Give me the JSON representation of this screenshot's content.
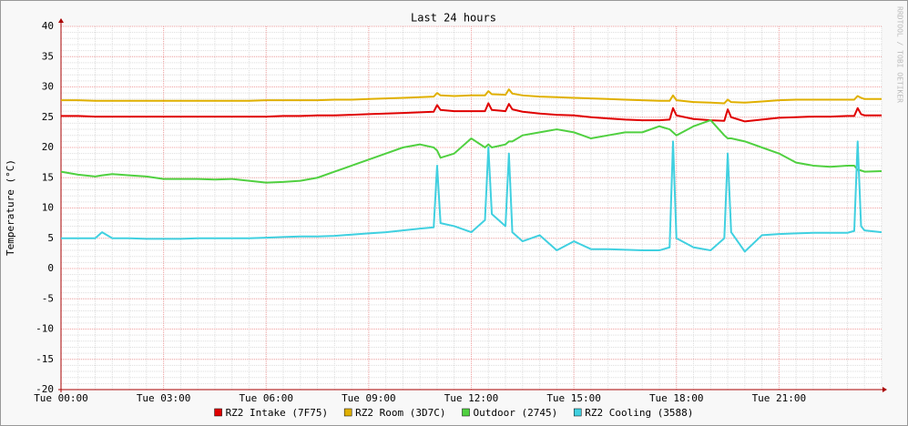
{
  "chart_data": {
    "type": "line",
    "title": "Last 24 hours",
    "y_label": "Temperature (°C)",
    "watermark": "RRDTOOL / TOBI OETIKER",
    "x": [
      0,
      0.5,
      1,
      1.2,
      1.5,
      2,
      2.5,
      3,
      3.5,
      4,
      4.5,
      5,
      5.5,
      6,
      6.5,
      7,
      7.5,
      8,
      8.5,
      9,
      9.5,
      10,
      10.5,
      10.9,
      11,
      11.1,
      11.5,
      12,
      12.4,
      12.5,
      12.6,
      13,
      13.1,
      13.2,
      13.5,
      14,
      14.5,
      15,
      15.5,
      16,
      16.5,
      17,
      17.5,
      17.8,
      17.9,
      18,
      18.5,
      19,
      19.4,
      19.5,
      19.6,
      20,
      20.5,
      21,
      21.5,
      22,
      22.5,
      23,
      23.2,
      23.3,
      23.4,
      23.5,
      24
    ],
    "xlim": [
      0,
      24
    ],
    "xticks": [
      {
        "value": 0,
        "label": "Tue 00:00"
      },
      {
        "value": 3,
        "label": "Tue 03:00"
      },
      {
        "value": 6,
        "label": "Tue 06:00"
      },
      {
        "value": 9,
        "label": "Tue 09:00"
      },
      {
        "value": 12,
        "label": "Tue 12:00"
      },
      {
        "value": 15,
        "label": "Tue 15:00"
      },
      {
        "value": 18,
        "label": "Tue 18:00"
      },
      {
        "value": 21,
        "label": "Tue 21:00"
      }
    ],
    "ylim": [
      -20,
      40
    ],
    "yticks": [
      -20,
      -15,
      -10,
      -5,
      0,
      5,
      10,
      15,
      20,
      25,
      30,
      35,
      40
    ],
    "grid": true,
    "legend": "bottom",
    "series": [
      {
        "name": "RZ2 Intake (7F75)",
        "color": "#e00000",
        "values": [
          25.2,
          25.2,
          25.1,
          25.1,
          25.1,
          25.1,
          25.1,
          25.1,
          25.1,
          25.1,
          25.1,
          25.1,
          25.1,
          25.1,
          25.2,
          25.2,
          25.3,
          25.3,
          25.4,
          25.5,
          25.6,
          25.7,
          25.8,
          25.9,
          27,
          26.2,
          26,
          26,
          26,
          27.3,
          26.2,
          26,
          27.2,
          26.3,
          25.9,
          25.6,
          25.4,
          25.3,
          25,
          24.8,
          24.6,
          24.5,
          24.5,
          24.6,
          26.5,
          25.3,
          24.7,
          24.5,
          24.4,
          26.3,
          25,
          24.3,
          24.6,
          24.9,
          25,
          25.1,
          25.1,
          25.2,
          25.2,
          26.5,
          25.5,
          25.3,
          25.3
        ]
      },
      {
        "name": "RZ2 Room (3D7C)",
        "color": "#e0b000",
        "values": [
          27.8,
          27.8,
          27.7,
          27.7,
          27.7,
          27.7,
          27.7,
          27.7,
          27.7,
          27.7,
          27.7,
          27.7,
          27.7,
          27.8,
          27.8,
          27.8,
          27.8,
          27.9,
          27.9,
          28,
          28.1,
          28.2,
          28.3,
          28.4,
          29,
          28.6,
          28.5,
          28.6,
          28.6,
          29.3,
          28.8,
          28.7,
          29.6,
          28.9,
          28.6,
          28.4,
          28.3,
          28.2,
          28.1,
          28,
          27.9,
          27.8,
          27.7,
          27.7,
          28.6,
          27.8,
          27.5,
          27.4,
          27.3,
          27.9,
          27.5,
          27.4,
          27.6,
          27.8,
          27.9,
          27.9,
          27.9,
          27.9,
          27.9,
          28.5,
          28.2,
          28,
          28
        ]
      },
      {
        "name": "Outdoor (2745)",
        "color": "#50d040",
        "values": [
          16,
          15.5,
          15.2,
          15.4,
          15.6,
          15.4,
          15.2,
          14.8,
          14.8,
          14.8,
          14.7,
          14.8,
          14.5,
          14.2,
          14.3,
          14.5,
          15,
          16,
          17,
          18,
          19,
          20,
          20.5,
          20,
          19.5,
          18.3,
          19,
          21.5,
          20,
          20.5,
          20,
          20.5,
          21,
          21,
          22,
          22.5,
          23,
          22.5,
          21.5,
          22,
          22.5,
          22.5,
          23.5,
          23,
          22.5,
          22,
          23.5,
          24.5,
          22,
          21.5,
          21.5,
          21,
          20,
          19,
          17.5,
          17,
          16.8,
          17,
          17,
          16.3,
          16.2,
          16,
          16.1
        ]
      },
      {
        "name": "RZ2 Cooling (3588)",
        "color": "#40d0e0",
        "values": [
          5,
          5,
          5,
          6,
          5,
          5,
          4.9,
          4.9,
          4.9,
          5,
          5,
          5,
          5,
          5.1,
          5.2,
          5.3,
          5.3,
          5.4,
          5.6,
          5.8,
          6,
          6.3,
          6.6,
          6.8,
          17,
          7.5,
          7,
          6,
          8,
          20,
          9,
          7,
          19,
          6,
          4.5,
          5.5,
          3,
          4.5,
          3.2,
          3.2,
          3.1,
          3,
          3,
          3.5,
          21,
          5,
          3.5,
          3,
          5,
          19,
          6,
          2.8,
          5.5,
          5.7,
          5.8,
          5.9,
          5.9,
          5.9,
          6.2,
          21,
          7,
          6.3,
          6
        ]
      }
    ]
  }
}
